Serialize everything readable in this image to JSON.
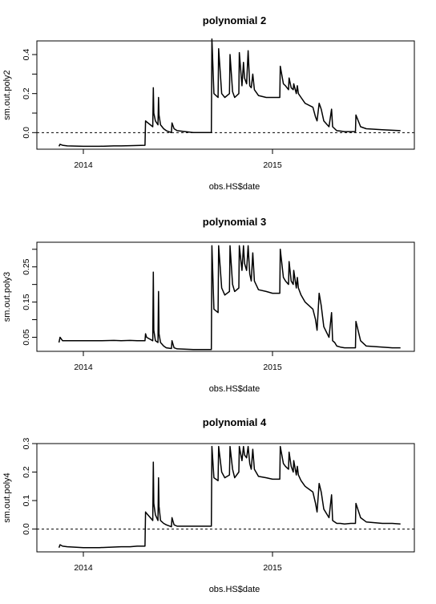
{
  "chart_data": [
    {
      "type": "line",
      "title": "polynomial 2",
      "xlabel": "obs.HS$date",
      "ylabel": "sm.out.poly2",
      "x_ticks": [
        "2014",
        "2015"
      ],
      "y_ticks": [
        "0.0",
        "0.2",
        "0.4"
      ],
      "y_minor_ticks": [
        0.1,
        0.3
      ],
      "ylim": [
        -0.1,
        0.5
      ],
      "xlim": [
        "2013-11-01",
        "2015-09-15"
      ],
      "reference_line": {
        "y": 0,
        "style": "dashed"
      },
      "series": [
        {
          "x": [
            "2013-11-15",
            "2013-11-17",
            "2013-11-22",
            "2013-12-01",
            "2014-01-01",
            "2014-02-01",
            "2014-03-01",
            "2014-03-15",
            "2014-04-01",
            "2014-04-15",
            "2014-04-30",
            "2014-05-01",
            "2014-05-03",
            "2014-05-15",
            "2014-05-16",
            "2014-05-17",
            "2014-05-20",
            "2014-05-25",
            "2014-05-26",
            "2014-05-27",
            "2014-05-30",
            "2014-06-05",
            "2014-06-10",
            "2014-06-20",
            "2014-06-21",
            "2014-06-25",
            "2014-07-01",
            "2014-08-01",
            "2014-09-05",
            "2014-09-06",
            "2014-09-10",
            "2014-09-18",
            "2014-09-19",
            "2014-09-25",
            "2014-10-01",
            "2014-10-10",
            "2014-10-11",
            "2014-10-16",
            "2014-10-20",
            "2014-10-28",
            "2014-10-29",
            "2014-11-03",
            "2014-11-06",
            "2014-11-08",
            "2014-11-12",
            "2014-11-15",
            "2014-11-18",
            "2014-11-21",
            "2014-11-24",
            "2014-11-27",
            "2014-12-05",
            "2014-12-20",
            "2015-01-01",
            "2015-01-15",
            "2015-01-16",
            "2015-01-22",
            "2015-01-26",
            "2015-02-01",
            "2015-02-02",
            "2015-02-06",
            "2015-02-10",
            "2015-02-11",
            "2015-02-16",
            "2015-02-18",
            "2015-02-20",
            "2015-02-25",
            "2015-03-05",
            "2015-03-20",
            "2015-03-25",
            "2015-03-28",
            "2015-04-01",
            "2015-04-05",
            "2015-04-10",
            "2015-04-20",
            "2015-04-25",
            "2015-04-27",
            "2015-05-01",
            "2015-05-05",
            "2015-05-12",
            "2015-05-20",
            "2015-06-01",
            "2015-06-10",
            "2015-06-11",
            "2015-06-20",
            "2015-07-01",
            "2015-08-01",
            "2015-08-20",
            "2015-09-05"
          ],
          "y": [
            -0.07,
            -0.06,
            -0.065,
            -0.068,
            -0.07,
            -0.07,
            -0.068,
            -0.068,
            -0.067,
            -0.066,
            -0.065,
            0.06,
            0.055,
            0.03,
            0.23,
            0.1,
            0.06,
            0.04,
            0.18,
            0.09,
            0.04,
            0.02,
            0.01,
            0.0,
            0.05,
            0.02,
            0.01,
            0.0,
            0.0,
            0.48,
            0.2,
            0.18,
            0.43,
            0.2,
            0.18,
            0.2,
            0.4,
            0.21,
            0.18,
            0.2,
            0.41,
            0.24,
            0.36,
            0.28,
            0.25,
            0.42,
            0.24,
            0.23,
            0.3,
            0.22,
            0.19,
            0.18,
            0.18,
            0.18,
            0.34,
            0.25,
            0.24,
            0.22,
            0.28,
            0.23,
            0.22,
            0.25,
            0.2,
            0.24,
            0.2,
            0.18,
            0.15,
            0.13,
            0.08,
            0.06,
            0.15,
            0.12,
            0.06,
            0.03,
            0.12,
            0.03,
            0.02,
            0.01,
            0.008,
            0.005,
            0.005,
            0.005,
            0.09,
            0.03,
            0.02,
            0.015,
            0.012,
            0.01
          ]
        }
      ]
    },
    {
      "type": "line",
      "title": "polynomial 3",
      "xlabel": "obs.HS$date",
      "ylabel": "sm.out.poly3",
      "x_ticks": [
        "2014",
        "2015"
      ],
      "y_ticks": [
        "0.05",
        "0.15",
        "0.25"
      ],
      "y_minor_ticks": [
        0.1,
        0.2,
        0.3
      ],
      "ylim": [
        0.01,
        0.32
      ],
      "xlim": [
        "2013-11-01",
        "2015-09-15"
      ],
      "series": [
        {
          "x": [
            "2013-11-15",
            "2013-11-17",
            "2013-11-22",
            "2013-12-01",
            "2014-01-01",
            "2014-02-01",
            "2014-03-01",
            "2014-03-15",
            "2014-04-01",
            "2014-04-15",
            "2014-04-30",
            "2014-05-01",
            "2014-05-03",
            "2014-05-15",
            "2014-05-16",
            "2014-05-17",
            "2014-05-20",
            "2014-05-25",
            "2014-05-26",
            "2014-05-27",
            "2014-05-30",
            "2014-06-05",
            "2014-06-10",
            "2014-06-20",
            "2014-06-21",
            "2014-06-25",
            "2014-07-01",
            "2014-08-01",
            "2014-09-05",
            "2014-09-06",
            "2014-09-10",
            "2014-09-18",
            "2014-09-19",
            "2014-09-25",
            "2014-10-01",
            "2014-10-10",
            "2014-10-11",
            "2014-10-16",
            "2014-10-20",
            "2014-10-28",
            "2014-10-29",
            "2014-11-03",
            "2014-11-06",
            "2014-11-08",
            "2014-11-12",
            "2014-11-15",
            "2014-11-18",
            "2014-11-21",
            "2014-11-24",
            "2014-11-27",
            "2014-12-05",
            "2014-12-20",
            "2015-01-01",
            "2015-01-15",
            "2015-01-16",
            "2015-01-22",
            "2015-01-26",
            "2015-02-01",
            "2015-02-02",
            "2015-02-06",
            "2015-02-10",
            "2015-02-11",
            "2015-02-16",
            "2015-02-18",
            "2015-02-20",
            "2015-02-25",
            "2015-03-05",
            "2015-03-20",
            "2015-03-25",
            "2015-03-28",
            "2015-04-01",
            "2015-04-05",
            "2015-04-10",
            "2015-04-20",
            "2015-04-25",
            "2015-04-27",
            "2015-05-01",
            "2015-05-05",
            "2015-05-12",
            "2015-05-20",
            "2015-06-01",
            "2015-06-10",
            "2015-06-11",
            "2015-06-20",
            "2015-07-01",
            "2015-08-01",
            "2015-08-20",
            "2015-09-05"
          ],
          "y": [
            0.035,
            0.05,
            0.04,
            0.04,
            0.04,
            0.04,
            0.041,
            0.04,
            0.041,
            0.04,
            0.04,
            0.06,
            0.05,
            0.04,
            0.235,
            0.07,
            0.04,
            0.035,
            0.18,
            0.06,
            0.035,
            0.025,
            0.02,
            0.018,
            0.04,
            0.02,
            0.017,
            0.015,
            0.015,
            0.31,
            0.13,
            0.12,
            0.31,
            0.19,
            0.17,
            0.18,
            0.31,
            0.2,
            0.18,
            0.19,
            0.31,
            0.24,
            0.31,
            0.26,
            0.24,
            0.31,
            0.23,
            0.21,
            0.29,
            0.21,
            0.185,
            0.18,
            0.175,
            0.175,
            0.3,
            0.22,
            0.21,
            0.2,
            0.265,
            0.21,
            0.2,
            0.24,
            0.19,
            0.22,
            0.19,
            0.17,
            0.15,
            0.13,
            0.1,
            0.07,
            0.175,
            0.14,
            0.08,
            0.05,
            0.12,
            0.04,
            0.035,
            0.025,
            0.022,
            0.02,
            0.02,
            0.02,
            0.095,
            0.04,
            0.025,
            0.022,
            0.02,
            0.02
          ]
        }
      ]
    },
    {
      "type": "line",
      "title": "polynomial 4",
      "xlabel": "obs.HS$date",
      "ylabel": "sm.out.poly4",
      "x_ticks": [
        "2014",
        "2015"
      ],
      "y_ticks": [
        "0.0",
        "0.1",
        "0.2",
        "0.3"
      ],
      "ylim": [
        -0.1,
        0.3
      ],
      "xlim": [
        "2013-11-01",
        "2015-09-15"
      ],
      "reference_line": {
        "y": 0,
        "style": "dashed"
      },
      "series": [
        {
          "x": [
            "2013-11-15",
            "2013-11-17",
            "2013-11-22",
            "2013-12-01",
            "2014-01-01",
            "2014-02-01",
            "2014-03-01",
            "2014-03-15",
            "2014-04-01",
            "2014-04-15",
            "2014-04-30",
            "2014-05-01",
            "2014-05-03",
            "2014-05-15",
            "2014-05-16",
            "2014-05-17",
            "2014-05-20",
            "2014-05-25",
            "2014-05-26",
            "2014-05-27",
            "2014-05-30",
            "2014-06-05",
            "2014-06-10",
            "2014-06-20",
            "2014-06-21",
            "2014-06-25",
            "2014-07-01",
            "2014-08-01",
            "2014-09-05",
            "2014-09-06",
            "2014-09-10",
            "2014-09-18",
            "2014-09-19",
            "2014-09-25",
            "2014-10-01",
            "2014-10-10",
            "2014-10-11",
            "2014-10-16",
            "2014-10-20",
            "2014-10-28",
            "2014-10-29",
            "2014-11-03",
            "2014-11-06",
            "2014-11-08",
            "2014-11-12",
            "2014-11-15",
            "2014-11-18",
            "2014-11-21",
            "2014-11-24",
            "2014-11-27",
            "2014-12-05",
            "2014-12-20",
            "2015-01-01",
            "2015-01-15",
            "2015-01-16",
            "2015-01-22",
            "2015-01-26",
            "2015-02-01",
            "2015-02-02",
            "2015-02-06",
            "2015-02-10",
            "2015-02-11",
            "2015-02-16",
            "2015-02-18",
            "2015-02-20",
            "2015-02-25",
            "2015-03-05",
            "2015-03-20",
            "2015-03-25",
            "2015-03-28",
            "2015-04-01",
            "2015-04-05",
            "2015-04-10",
            "2015-04-20",
            "2015-04-25",
            "2015-04-27",
            "2015-05-01",
            "2015-05-05",
            "2015-05-12",
            "2015-05-20",
            "2015-06-01",
            "2015-06-10",
            "2015-06-11",
            "2015-06-20",
            "2015-07-01",
            "2015-08-01",
            "2015-08-20",
            "2015-09-05"
          ],
          "y": [
            -0.065,
            -0.055,
            -0.06,
            -0.062,
            -0.065,
            -0.065,
            -0.063,
            -0.062,
            -0.062,
            -0.06,
            -0.06,
            0.06,
            0.055,
            0.03,
            0.235,
            0.09,
            0.05,
            0.03,
            0.18,
            0.08,
            0.03,
            0.02,
            0.015,
            0.008,
            0.04,
            0.015,
            0.01,
            0.01,
            0.01,
            0.29,
            0.18,
            0.17,
            0.29,
            0.2,
            0.18,
            0.19,
            0.29,
            0.21,
            0.18,
            0.2,
            0.29,
            0.24,
            0.29,
            0.26,
            0.25,
            0.29,
            0.23,
            0.21,
            0.28,
            0.21,
            0.185,
            0.18,
            0.175,
            0.175,
            0.29,
            0.23,
            0.22,
            0.21,
            0.27,
            0.22,
            0.2,
            0.24,
            0.19,
            0.22,
            0.19,
            0.17,
            0.15,
            0.13,
            0.09,
            0.06,
            0.16,
            0.13,
            0.07,
            0.04,
            0.12,
            0.03,
            0.025,
            0.02,
            0.02,
            0.018,
            0.02,
            0.02,
            0.09,
            0.04,
            0.025,
            0.02,
            0.02,
            0.018
          ]
        }
      ]
    }
  ]
}
